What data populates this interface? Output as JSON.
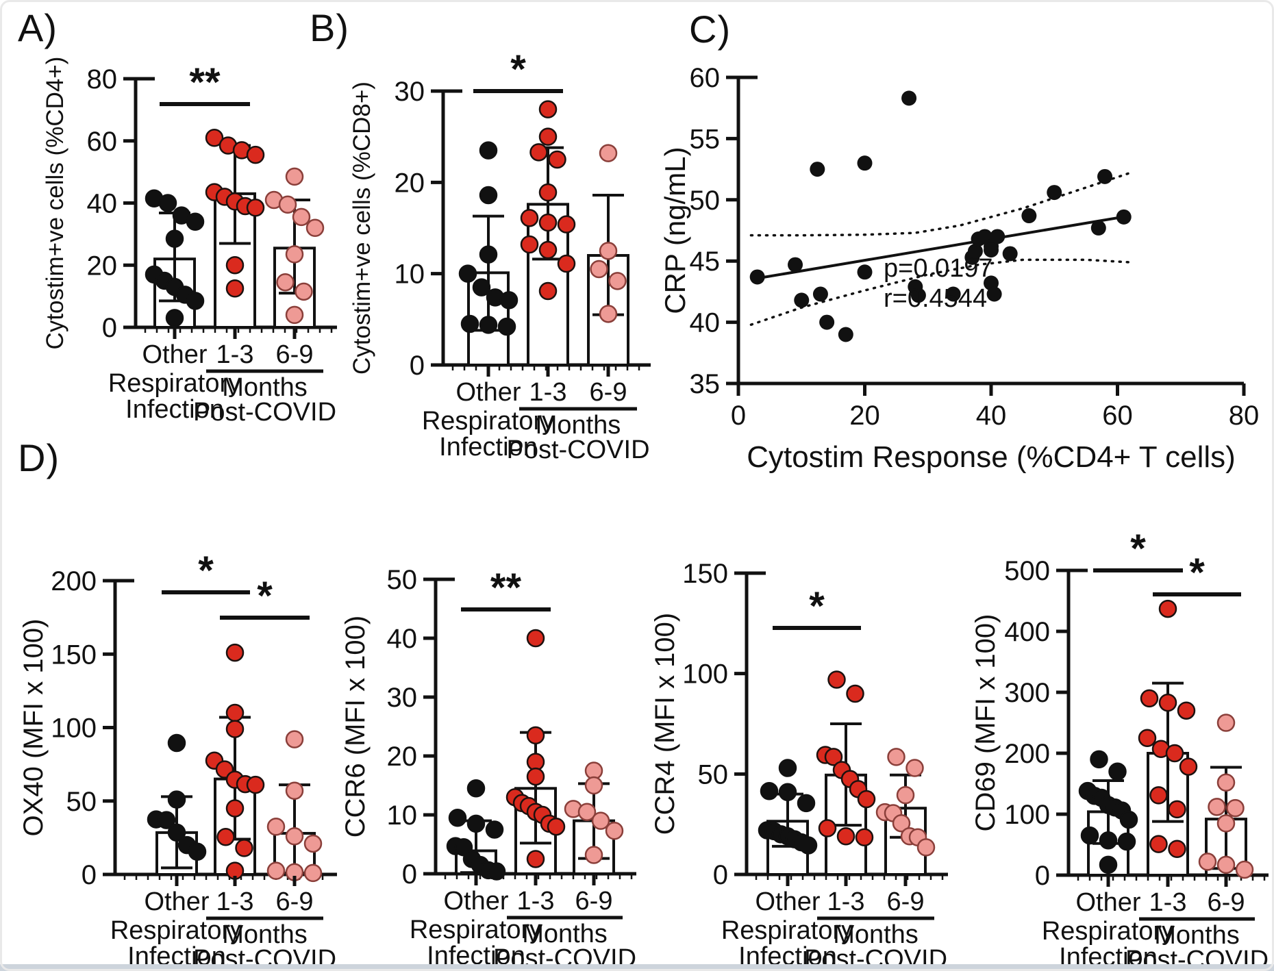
{
  "panels": {
    "a": "A)",
    "b": "B)",
    "c": "C)",
    "d": "D)"
  },
  "palette": {
    "black": "#111111",
    "red": "#da2a1e",
    "red_stroke": "#1c110f",
    "pink": "#ee9a95",
    "pink_stroke": "#8a3f3a",
    "axis": "#111111",
    "bar_fill": "#ffffff",
    "bottom_bar": "#cdd4dc"
  },
  "bar_footer": {
    "infection_lines": [
      "Respiratory",
      "Infection"
    ],
    "months_lines": [
      "Months",
      "Post-COVID"
    ]
  },
  "chart_data": [
    {
      "id": "A",
      "type": "bar",
      "ylabel": "Cytostim+ve cells (%CD4+)",
      "ylim": [
        0,
        80
      ],
      "yticks": [
        0,
        20,
        40,
        60,
        80
      ],
      "categories": [
        "Other Respiratory Infection",
        "1-3 Months Post-COVID",
        "6-9 Months Post-COVID"
      ],
      "group_labels": [
        "Other",
        "1-3",
        "6-9"
      ],
      "series": [
        {
          "name": "Other",
          "color": "black",
          "bar": 22,
          "whisker": [
            8.5,
            36.8
          ],
          "values": [
            41.5,
            40,
            36,
            34,
            28.5,
            17,
            15,
            13,
            10.5,
            8.5,
            3
          ]
        },
        {
          "name": "1-3",
          "color": "red",
          "bar": 43,
          "whisker": [
            27,
            58.5
          ],
          "values": [
            61,
            58.5,
            57,
            55.5,
            43.5,
            42,
            40.5,
            39,
            38.5,
            20,
            12.5
          ]
        },
        {
          "name": "6-9",
          "color": "pink",
          "bar": 25.5,
          "whisker": [
            11,
            41
          ],
          "values": [
            48.5,
            41,
            39.5,
            35.5,
            32,
            23.5,
            14.5,
            11.5,
            4
          ]
        }
      ],
      "significance": [
        {
          "from": 0,
          "to": 1,
          "label": "**"
        }
      ]
    },
    {
      "id": "B",
      "type": "bar",
      "ylabel": "Cytostim+ve cells (%CD8+)",
      "ylim": [
        0,
        30
      ],
      "yticks": [
        0,
        10,
        20,
        30
      ],
      "categories": [
        "Other Respiratory Infection",
        "1-3 Months Post-COVID",
        "6-9 Months Post-COVID"
      ],
      "group_labels": [
        "Other",
        "1-3",
        "6-9"
      ],
      "series": [
        {
          "name": "Other",
          "color": "black",
          "bar": 10.1,
          "whisker": [
            3.8,
            16.3
          ],
          "values": [
            23.5,
            18.6,
            12.1,
            10,
            8.5,
            7.4,
            7.1,
            4.5,
            4.4,
            4.2
          ]
        },
        {
          "name": "1-3",
          "color": "red",
          "bar": 17.6,
          "whisker": [
            11.6,
            23.8
          ],
          "values": [
            28,
            25,
            23.3,
            22.5,
            18.9,
            16.1,
            15.6,
            15.4,
            13.2,
            12.6,
            11.1,
            8.1
          ]
        },
        {
          "name": "6-9",
          "color": "pink",
          "bar": 12,
          "whisker": [
            5.5,
            18.6
          ],
          "values": [
            23.2,
            12.5,
            10.5,
            9.2,
            5.6
          ]
        }
      ],
      "significance": [
        {
          "from": 0,
          "to": 1,
          "label": "*"
        }
      ]
    },
    {
      "id": "C",
      "type": "scatter",
      "ylabel": "CRP (ng/mL)",
      "xlabel": "Cytostim Response (%CD4+ T cells)",
      "ylim": [
        35,
        60
      ],
      "yticks": [
        35,
        40,
        45,
        50,
        55,
        60
      ],
      "xlim": [
        0,
        80
      ],
      "xticks": [
        0,
        20,
        40,
        60,
        80
      ],
      "annotation": {
        "p": "p=0.0197",
        "r": "r=0.4544"
      },
      "points": [
        [
          3,
          43.7
        ],
        [
          9,
          44.7
        ],
        [
          10,
          41.8
        ],
        [
          12.5,
          52.5
        ],
        [
          13,
          42.3
        ],
        [
          14,
          40
        ],
        [
          17,
          39
        ],
        [
          20,
          53
        ],
        [
          20,
          44.1
        ],
        [
          27,
          58.3
        ],
        [
          28,
          42.9
        ],
        [
          28.5,
          42.2
        ],
        [
          34,
          42.3
        ],
        [
          37,
          45.3
        ],
        [
          37.5,
          45.8
        ],
        [
          38,
          46.8
        ],
        [
          39,
          47
        ],
        [
          40,
          46.2
        ],
        [
          40,
          45.9
        ],
        [
          40,
          43.2
        ],
        [
          40.5,
          42.3
        ],
        [
          41,
          47
        ],
        [
          43,
          45.6
        ],
        [
          46,
          48.7
        ],
        [
          50,
          50.6
        ],
        [
          57,
          47.7
        ],
        [
          58,
          51.9
        ],
        [
          61,
          48.6
        ]
      ],
      "regression": {
        "x1": 2,
        "y1": 43.5,
        "x2": 62,
        "y2": 48.7
      },
      "ci_upper": [
        [
          2,
          47.1
        ],
        [
          10,
          47.1
        ],
        [
          20,
          47.15
        ],
        [
          28,
          47.3
        ],
        [
          35,
          47.9
        ],
        [
          45,
          49.3
        ],
        [
          55,
          51.0
        ],
        [
          62,
          52.2
        ]
      ],
      "ci_lower": [
        [
          2,
          39.8
        ],
        [
          10,
          41.2
        ],
        [
          20,
          42.6
        ],
        [
          30,
          43.9
        ],
        [
          38,
          44.7
        ],
        [
          45,
          45.1
        ],
        [
          55,
          45.1
        ],
        [
          62,
          44.9
        ]
      ]
    },
    {
      "id": "OX40",
      "type": "bar",
      "ylabel": "OX40 (MFI x 100)",
      "ylim": [
        0,
        200
      ],
      "yticks": [
        0,
        50,
        100,
        150,
        200
      ],
      "categories": [
        "Other Respiratory Infection",
        "1-3 Months Post-COVID",
        "6-9 Months Post-COVID"
      ],
      "group_labels": [
        "Other",
        "1-3",
        "6-9"
      ],
      "series": [
        {
          "name": "Other",
          "color": "black",
          "bar": 28.5,
          "whisker": [
            4.5,
            53
          ],
          "values": [
            89.5,
            51,
            37.5,
            37,
            28.5,
            20,
            15.5
          ]
        },
        {
          "name": "1-3",
          "color": "red",
          "bar": 65,
          "whisker": [
            24,
            107
          ],
          "values": [
            151,
            110,
            99,
            77.5,
            71.5,
            64.5,
            61.5,
            61,
            45,
            25.5,
            18,
            2.5
          ]
        },
        {
          "name": "6-9",
          "color": "pink",
          "bar": 28,
          "whisker": [
            1,
            61
          ],
          "values": [
            92,
            57,
            32.5,
            26,
            21,
            2.5,
            1.5,
            1
          ]
        }
      ],
      "significance": [
        {
          "from": 0,
          "to": 1,
          "label": "*"
        },
        {
          "from": 1,
          "to": 2,
          "label": "*"
        }
      ]
    },
    {
      "id": "CCR6",
      "type": "bar",
      "ylabel": "CCR6 (MFI x 100)",
      "ylim": [
        0,
        50
      ],
      "yticks": [
        0,
        10,
        20,
        30,
        40,
        50
      ],
      "categories": [
        "Other Respiratory Infection",
        "1-3 Months Post-COVID",
        "6-9 Months Post-COVID"
      ],
      "group_labels": [
        "Other",
        "1-3",
        "6-9"
      ],
      "series": [
        {
          "name": "Other",
          "color": "black",
          "bar": 3.9,
          "whisker": [
            0.2,
            9
          ],
          "values": [
            14.5,
            9.5,
            8.5,
            7.5,
            4.7,
            4.5,
            2.5,
            1.5,
            0.6,
            0.4
          ]
        },
        {
          "name": "1-3",
          "color": "red",
          "bar": 14.5,
          "whisker": [
            5.2,
            24
          ],
          "values": [
            40,
            23.5,
            19,
            16.5,
            13,
            12,
            11.5,
            10.5,
            10,
            8.5,
            8,
            2.5
          ]
        },
        {
          "name": "6-9",
          "color": "pink",
          "bar": 9,
          "whisker": [
            2.6,
            15.3
          ],
          "values": [
            17.5,
            15,
            11,
            10.5,
            9,
            7.3,
            3.2
          ]
        }
      ],
      "significance": [
        {
          "from": 0,
          "to": 1,
          "label": "**"
        }
      ]
    },
    {
      "id": "CCR4",
      "type": "bar",
      "ylabel": "CCR4 (MFI x 100)",
      "ylim": [
        0,
        150
      ],
      "yticks": [
        0,
        50,
        100,
        150
      ],
      "categories": [
        "Other Respiratory Infection",
        "1-3 Months Post-COVID",
        "6-9 Months Post-COVID"
      ],
      "group_labels": [
        "Other",
        "1-3",
        "6-9"
      ],
      "series": [
        {
          "name": "Other",
          "color": "black",
          "bar": 26.5,
          "whisker": [
            14,
            40
          ],
          "values": [
            53,
            41.5,
            41,
            35.5,
            22,
            21.5,
            20,
            19,
            17.5,
            16,
            14.5
          ]
        },
        {
          "name": "1-3",
          "color": "red",
          "bar": 49.5,
          "whisker": [
            24.5,
            75
          ],
          "values": [
            97,
            90,
            59.5,
            58.5,
            52,
            47.5,
            42.5,
            37.5,
            23,
            19,
            18.5
          ]
        },
        {
          "name": "6-9",
          "color": "pink",
          "bar": 33,
          "whisker": [
            18.5,
            49.5
          ],
          "values": [
            58.5,
            53,
            39.5,
            31,
            30.5,
            25.5,
            19,
            18.5,
            13.5
          ]
        }
      ],
      "significance": [
        {
          "from": 0,
          "to": 1,
          "label": "*"
        }
      ]
    },
    {
      "id": "CD69",
      "type": "bar",
      "ylabel": "CD69 (MFI x 100)",
      "ylim": [
        0,
        500
      ],
      "yticks": [
        0,
        100,
        200,
        300,
        400,
        500
      ],
      "categories": [
        "Other Respiratory Infection",
        "1-3 Months Post-COVID",
        "6-9 Months Post-COVID"
      ],
      "group_labels": [
        "Other",
        "1-3",
        "6-9"
      ],
      "series": [
        {
          "name": "Other",
          "color": "black",
          "bar": 104,
          "whisker": [
            52,
            155
          ],
          "values": [
            190,
            170,
            138,
            130,
            127,
            115,
            111,
            106,
            91,
            65,
            57,
            55,
            17
          ]
        },
        {
          "name": "1-3",
          "color": "red",
          "bar": 200,
          "whisker": [
            88,
            315
          ],
          "values": [
            437,
            290,
            283,
            270,
            225,
            207,
            200,
            178,
            131,
            108,
            51,
            43
          ]
        },
        {
          "name": "6-9",
          "color": "pink",
          "bar": 92,
          "whisker": [
            11,
            177
          ],
          "values": [
            250,
            152,
            112,
            110,
            85,
            22,
            17,
            9
          ]
        }
      ],
      "significance": [
        {
          "from": 0,
          "to": 1,
          "label": "*"
        },
        {
          "from": 1,
          "to": 2,
          "label": "*"
        }
      ]
    }
  ]
}
